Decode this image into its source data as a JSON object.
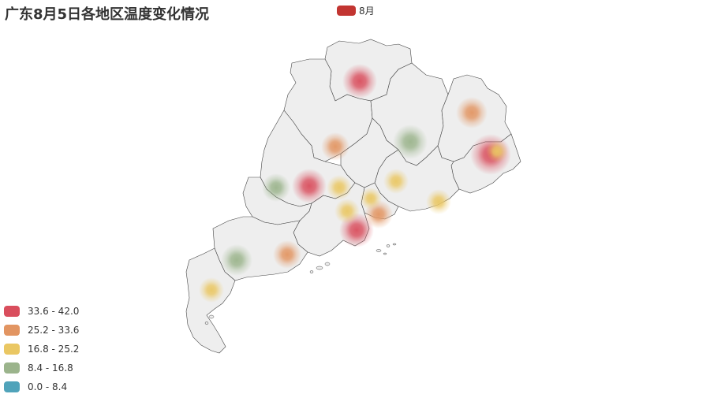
{
  "title": "广东8月5日各地区温度变化情况",
  "series_legend": {
    "name": "8月",
    "color": "#c23531"
  },
  "visual_map": {
    "pieces": [
      {
        "label": "33.6 - 42.0",
        "color": "#d94e5d"
      },
      {
        "label": "25.2 - 33.6",
        "color": "#e29562"
      },
      {
        "label": "16.8 - 25.2",
        "color": "#eac763"
      },
      {
        "label": "8.4 - 16.8",
        "color": "#9bb48c"
      },
      {
        "label": "0.0 - 8.4",
        "color": "#50a3ba"
      }
    ]
  },
  "map": {
    "region": "广东",
    "region_fill": "#eeeeee",
    "border_color": "#444444",
    "heat_points": [
      {
        "value": 38,
        "level": 0
      },
      {
        "value": 30,
        "level": 1
      },
      {
        "value": 28,
        "level": 1
      },
      {
        "value": 37,
        "level": 0
      },
      {
        "value": 36,
        "level": 0
      },
      {
        "value": 39,
        "level": 0
      },
      {
        "value": 29,
        "level": 1
      },
      {
        "value": 27,
        "level": 1
      },
      {
        "value": 22,
        "level": 2
      },
      {
        "value": 21,
        "level": 2
      },
      {
        "value": 20,
        "level": 2
      },
      {
        "value": 24,
        "level": 2
      },
      {
        "value": 19,
        "level": 2
      },
      {
        "value": 22,
        "level": 2
      },
      {
        "value": 20,
        "level": 2
      },
      {
        "value": 12,
        "level": 3
      },
      {
        "value": 11,
        "level": 3
      },
      {
        "value": 10,
        "level": 3
      }
    ]
  }
}
